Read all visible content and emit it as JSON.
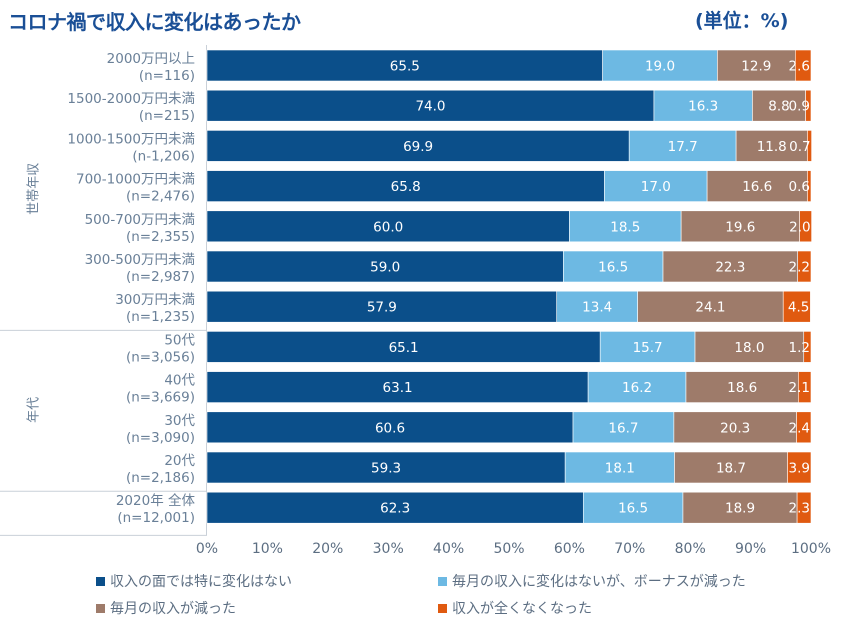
{
  "title": "コロナ禍で収入に変化はあったか",
  "unit_label": "(単位：%)",
  "chart_data": {
    "type": "bar",
    "orientation": "horizontal",
    "stacked": true,
    "title": "コロナ禍で収入に変化はあったか",
    "xlim": [
      0,
      100
    ],
    "x_ticks": [
      "0%",
      "10%",
      "20%",
      "30%",
      "40%",
      "50%",
      "60%",
      "70%",
      "80%",
      "90%",
      "100%"
    ],
    "groups": [
      {
        "name": "世帯年収",
        "rows": [
          0,
          6
        ]
      },
      {
        "name": "年代",
        "rows": [
          7,
          10
        ]
      }
    ],
    "categories": [
      {
        "line1": "2000万円以上",
        "line2": "(n=116)"
      },
      {
        "line1": "1500-2000万円未満",
        "line2": "(n=215)"
      },
      {
        "line1": "1000-1500万円未満",
        "line2": "(n-1,206)"
      },
      {
        "line1": "700-1000万円未満",
        "line2": "(n=2,476)"
      },
      {
        "line1": "500-700万円未満",
        "line2": "(n=2,355)"
      },
      {
        "line1": "300-500万円未満",
        "line2": "(n=2,987)"
      },
      {
        "line1": "300万円未満",
        "line2": "(n=1,235)"
      },
      {
        "line1": "50代",
        "line2": "(n=3,056)"
      },
      {
        "line1": "40代",
        "line2": "(n=3,669)"
      },
      {
        "line1": "30代",
        "line2": "(n=3,090)"
      },
      {
        "line1": "20代",
        "line2": "(n=2,186)"
      },
      {
        "line1": "2020年 全体",
        "line2": "(n=12,001)"
      }
    ],
    "series": [
      {
        "name": "収入の面では特に変化はない",
        "color": "#0b4f8a",
        "values": [
          65.5,
          74.0,
          69.9,
          65.8,
          60.0,
          59.0,
          57.9,
          65.1,
          63.1,
          60.6,
          59.3,
          62.3
        ],
        "labels": [
          "65.5",
          "74.0",
          "69.9",
          "65.8",
          "60.0",
          "59.0",
          "57.9",
          "65.1",
          "63.1",
          "60.6",
          "59.3",
          "62.3"
        ]
      },
      {
        "name": "毎月の収入に変化はないが、ボーナスが減った",
        "color": "#6db9e3",
        "values": [
          19.0,
          16.3,
          17.7,
          17.0,
          18.5,
          16.5,
          13.4,
          15.7,
          16.2,
          16.7,
          18.1,
          16.5
        ],
        "labels": [
          "19.0",
          "16.3",
          "17.7",
          "17.0",
          "18.5",
          "16.5",
          "13.4",
          "15.7",
          "16.2",
          "16.7",
          "18.1",
          "16.5"
        ]
      },
      {
        "name": "毎月の収入が減った",
        "color": "#9e7b6a",
        "values": [
          12.9,
          8.8,
          11.8,
          16.6,
          19.6,
          22.3,
          24.1,
          18.0,
          18.6,
          20.3,
          18.7,
          18.9
        ],
        "labels": [
          "12.9",
          "8.8",
          "11.8",
          "16.6",
          "19.6",
          "22.3",
          "24.1",
          "18.0",
          "18.6",
          "20.3",
          "18.7",
          "18.9"
        ]
      },
      {
        "name": "収入が全くなくなった",
        "color": "#e05a10",
        "values": [
          2.6,
          0.9,
          0.7,
          0.6,
          2.0,
          2.2,
          4.5,
          1.2,
          2.1,
          2.4,
          3.9,
          2.3
        ],
        "labels": [
          "2.6",
          "0.9",
          "0.7",
          "0.6",
          "2.0",
          "2.2",
          "4.5",
          "1.2",
          "2.1",
          "2.4",
          "3.9",
          "2.3"
        ]
      }
    ],
    "legend": "bottom"
  }
}
